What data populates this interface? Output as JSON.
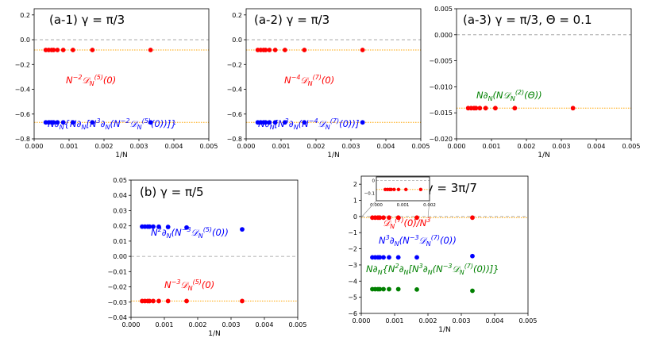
{
  "chart_data": [
    {
      "id": "a1",
      "type": "scatter",
      "title": "(a-1) γ = π/3",
      "xlabel": "1/N",
      "xlim": [
        0,
        0.005
      ],
      "ylim": [
        -0.8,
        0.25
      ],
      "xticks": [
        0,
        0.001,
        0.002,
        0.003,
        0.004,
        0.005
      ],
      "xtick_labels": [
        "0.000",
        "0.001",
        "0.002",
        "0.003",
        "0.004",
        "0.005"
      ],
      "yticks": [
        0.2,
        0.0,
        -0.2,
        -0.4,
        -0.6,
        -0.8
      ],
      "ytick_labels": [
        "0.2",
        "0.0",
        "−0.2",
        "−0.4",
        "−0.6",
        "−0.8"
      ],
      "zero_line": true,
      "series": [
        {
          "color": "#ff0000",
          "label": "N⁻²𝒟N⁽⁵⁾(0)",
          "x": [
            0.000333,
            0.000417,
            0.0005,
            0.000556,
            0.000667,
            0.000833,
            0.001111,
            0.001667,
            0.003333
          ],
          "y": [
            -0.083,
            -0.083,
            -0.083,
            -0.083,
            -0.083,
            -0.083,
            -0.083,
            -0.083,
            -0.083
          ],
          "ref_line": -0.083
        },
        {
          "color": "#0000ff",
          "label": "N∂N{N∂N[N³∂N(N⁻²𝒟N⁽⁵⁾(0))]}",
          "x": [
            0.000333,
            0.000417,
            0.0005,
            0.000556,
            0.000667,
            0.000833,
            0.001111,
            0.001667,
            0.003333
          ],
          "y": [
            -0.667,
            -0.667,
            -0.667,
            -0.667,
            -0.667,
            -0.667,
            -0.667,
            -0.667,
            -0.667
          ],
          "ref_line": -0.667
        }
      ]
    },
    {
      "id": "a2",
      "type": "scatter",
      "title": "(a-2) γ = π/3",
      "xlabel": "1/N",
      "xlim": [
        0,
        0.005
      ],
      "ylim": [
        -0.8,
        0.25
      ],
      "xticks": [
        0,
        0.001,
        0.002,
        0.003,
        0.004,
        0.005
      ],
      "xtick_labels": [
        "0.000",
        "0.001",
        "0.002",
        "0.003",
        "0.004",
        "0.005"
      ],
      "yticks": [
        0.2,
        0.0,
        -0.2,
        -0.4,
        -0.6,
        -0.8
      ],
      "ytick_labels": [
        "0.2",
        "0.0",
        "−0.2",
        "−0.4",
        "−0.6",
        "−0.8"
      ],
      "zero_line": true,
      "series": [
        {
          "color": "#ff0000",
          "label": "N⁻⁴𝒟N⁽⁷⁾(0)",
          "x": [
            0.000333,
            0.000417,
            0.0005,
            0.000556,
            0.000667,
            0.000833,
            0.001111,
            0.001667,
            0.003333
          ],
          "y": [
            -0.083,
            -0.083,
            -0.083,
            -0.083,
            -0.083,
            -0.083,
            -0.083,
            -0.083,
            -0.083
          ],
          "ref_line": -0.083
        },
        {
          "color": "#0000ff",
          "label": "N∂N[N³∂N(N⁻⁴𝒟N⁽⁷⁾(0))]",
          "x": [
            0.000333,
            0.000417,
            0.0005,
            0.000556,
            0.000667,
            0.000833,
            0.001111,
            0.001667,
            0.003333
          ],
          "y": [
            -0.667,
            -0.667,
            -0.667,
            -0.667,
            -0.667,
            -0.667,
            -0.667,
            -0.667,
            -0.667
          ],
          "ref_line": -0.667
        }
      ]
    },
    {
      "id": "a3",
      "type": "scatter",
      "title": "(a-3) γ = π/3, Θ = 0.1",
      "xlabel": "1/N",
      "xlim": [
        0,
        0.005
      ],
      "ylim": [
        -0.02,
        0.005
      ],
      "xticks": [
        0,
        0.001,
        0.002,
        0.003,
        0.004,
        0.005
      ],
      "xtick_labels": [
        "0.000",
        "0.001",
        "0.002",
        "0.003",
        "0.004",
        "0.005"
      ],
      "yticks": [
        0.005,
        0.0,
        -0.005,
        -0.01,
        -0.015,
        -0.02
      ],
      "ytick_labels": [
        "0.005",
        "0.000",
        "−0.005",
        "−0.010",
        "−0.015",
        "−0.020"
      ],
      "zero_line": true,
      "series": [
        {
          "color": "#ff0000",
          "label": "N∂N(N𝒟N⁽²⁾(Θ))",
          "label_color": "#008000",
          "x": [
            0.000333,
            0.000417,
            0.0005,
            0.000556,
            0.000667,
            0.000833,
            0.001111,
            0.001667,
            0.003333
          ],
          "y": [
            -0.0141,
            -0.0141,
            -0.0141,
            -0.0141,
            -0.0141,
            -0.0141,
            -0.0141,
            -0.0141,
            -0.0141
          ],
          "ref_line": -0.0141
        }
      ]
    },
    {
      "id": "b",
      "type": "scatter",
      "title": "(b) γ = π/5",
      "xlabel": "1/N",
      "xlim": [
        0,
        0.005
      ],
      "ylim": [
        -0.04,
        0.05
      ],
      "xticks": [
        0,
        0.001,
        0.002,
        0.003,
        0.004,
        0.005
      ],
      "xtick_labels": [
        "0.000",
        "0.001",
        "0.002",
        "0.003",
        "0.004",
        "0.005"
      ],
      "yticks": [
        0.05,
        0.04,
        0.03,
        0.02,
        0.01,
        0.0,
        -0.01,
        -0.02,
        -0.03,
        -0.04
      ],
      "ytick_labels": [
        "0.05",
        "0.04",
        "0.03",
        "0.02",
        "0.01",
        "0.00",
        "−0.01",
        "−0.02",
        "−0.03",
        "−0.04"
      ],
      "zero_line": true,
      "series": [
        {
          "color": "#0000ff",
          "label": "N²∂N(N⁻³𝒟N⁽⁵⁾(0))",
          "x": [
            0.000333,
            0.000417,
            0.0005,
            0.000556,
            0.000667,
            0.000833,
            0.001111,
            0.001667,
            0.003333
          ],
          "y": [
            0.0195,
            0.0195,
            0.0195,
            0.0195,
            0.0195,
            0.0194,
            0.0193,
            0.0189,
            0.0177
          ]
        },
        {
          "color": "#ff0000",
          "label": "N⁻³𝒟N⁽⁵⁾(0)",
          "x": [
            0.000333,
            0.000417,
            0.0005,
            0.000556,
            0.000667,
            0.000833,
            0.001111,
            0.001667,
            0.003333
          ],
          "y": [
            -0.0293,
            -0.0293,
            -0.0293,
            -0.0293,
            -0.0293,
            -0.0293,
            -0.0293,
            -0.0293,
            -0.0293
          ],
          "ref_line": -0.0293
        }
      ]
    },
    {
      "id": "c",
      "type": "scatter",
      "title": "(c) γ = 3π/7",
      "xlabel": "1/N",
      "xlim": [
        0,
        0.005
      ],
      "ylim": [
        -6,
        2.5
      ],
      "xticks": [
        0,
        0.001,
        0.002,
        0.003,
        0.004,
        0.005
      ],
      "xtick_labels": [
        "0.000",
        "0.001",
        "0.002",
        "0.003",
        "0.004",
        "0.005"
      ],
      "yticks": [
        2,
        1,
        0,
        -1,
        -2,
        -3,
        -4,
        -5,
        -6
      ],
      "ytick_labels": [
        "2",
        "1",
        "0",
        "−1",
        "−2",
        "−3",
        "−4",
        "−5",
        "−6"
      ],
      "zero_line": true,
      "series": [
        {
          "color": "#ff0000",
          "label": "𝒟N⁽⁷⁾(0)/N³",
          "x": [
            0.000333,
            0.000417,
            0.0005,
            0.000556,
            0.000667,
            0.000833,
            0.001111,
            0.001667,
            0.003333
          ],
          "y": [
            -0.07,
            -0.07,
            -0.07,
            -0.07,
            -0.07,
            -0.07,
            -0.07,
            -0.07,
            -0.07
          ],
          "ref_line": -0.07
        },
        {
          "color": "#0000ff",
          "label": "N³∂N(N⁻³𝒟N⁽⁷⁾(0))",
          "x": [
            0.000333,
            0.000417,
            0.0005,
            0.000556,
            0.000667,
            0.000833,
            0.001111,
            0.001667,
            0.003333
          ],
          "y": [
            -2.53,
            -2.53,
            -2.53,
            -2.53,
            -2.53,
            -2.53,
            -2.53,
            -2.53,
            -2.45
          ]
        },
        {
          "color": "#008000",
          "label": "N∂N{N²∂N[N³∂N(N⁻³𝒟N⁽⁷⁾(0))]}",
          "x": [
            0.000333,
            0.000417,
            0.0005,
            0.000556,
            0.000667,
            0.000833,
            0.001111,
            0.001667,
            0.003333
          ],
          "y": [
            -4.5,
            -4.5,
            -4.5,
            -4.5,
            -4.5,
            -4.5,
            -4.5,
            -4.52,
            -4.6
          ]
        }
      ],
      "inset": {
        "xlim": [
          0,
          0.002
        ],
        "ylim": [
          -0.16,
          0.03
        ],
        "xticks": [
          0,
          0.001,
          0.002
        ],
        "xtick_labels": [
          "0.000",
          "0.001",
          "0.002"
        ],
        "yticks": [
          0,
          -0.1
        ],
        "ytick_labels": [
          "0",
          "−0.1"
        ],
        "x": [
          0.000333,
          0.000417,
          0.0005,
          0.000556,
          0.000667,
          0.000833,
          0.001111,
          0.001667
        ],
        "y": [
          -0.07,
          -0.07,
          -0.07,
          -0.07,
          -0.07,
          -0.07,
          -0.07,
          -0.07
        ]
      }
    }
  ]
}
